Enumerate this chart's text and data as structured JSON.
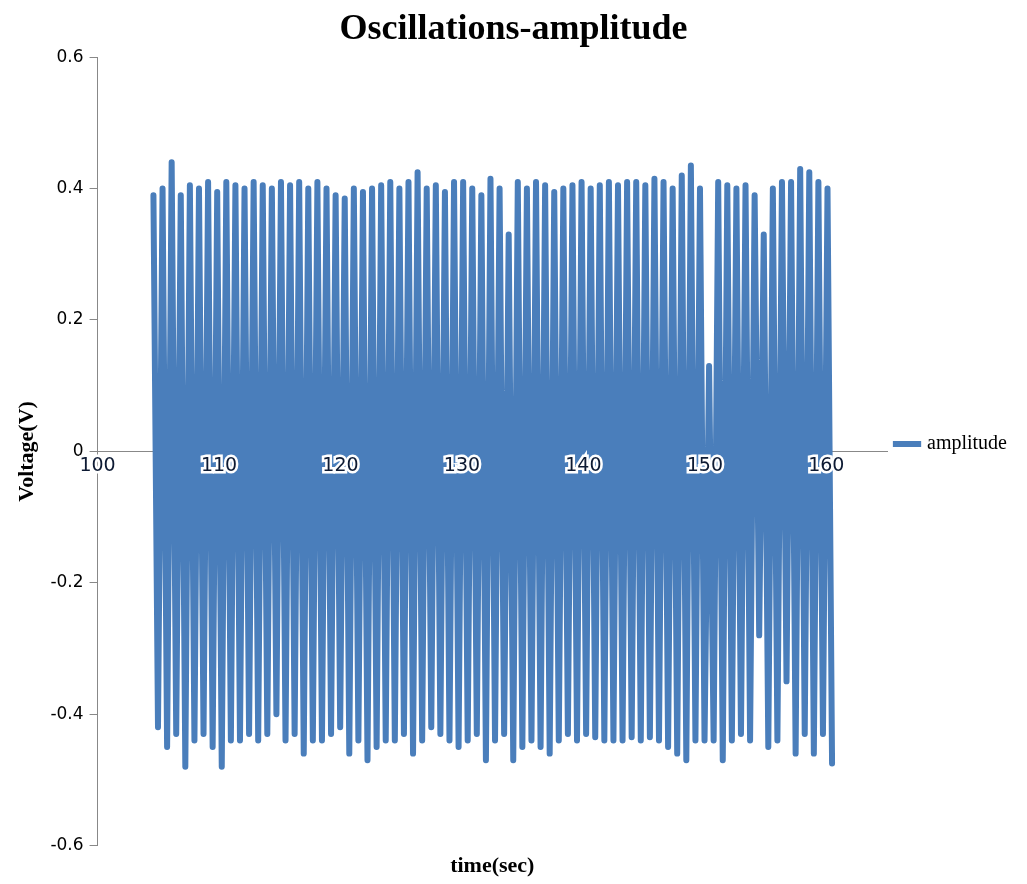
{
  "chart_data": {
    "type": "line",
    "title": "Oscillations-amplitude",
    "xlabel": "time(sec)",
    "ylabel": "Voltage(V)",
    "xlim": [
      100,
      165
    ],
    "xticks": [
      100,
      110,
      120,
      130,
      140,
      150,
      160
    ],
    "ylim": [
      -0.6,
      0.6
    ],
    "yticks": [
      -0.6,
      -0.4,
      -0.2,
      0,
      0.2,
      0.4,
      0.6
    ],
    "grid": false,
    "legend": "right",
    "marker": "none",
    "line_style": "solid",
    "series": [
      {
        "name": "amplitude",
        "color": "#4a7ebb",
        "x": [
          104.6,
          104.975,
          105.35,
          105.725,
          106.1,
          106.475,
          106.85,
          107.225,
          107.6,
          107.975,
          108.35,
          108.725,
          109.1,
          109.475,
          109.85,
          110.225,
          110.6,
          110.975,
          111.35,
          111.725,
          112.1,
          112.475,
          112.85,
          113.225,
          113.6,
          113.975,
          114.35,
          114.725,
          115.1,
          115.475,
          115.85,
          116.225,
          116.6,
          116.975,
          117.35,
          117.725,
          118.1,
          118.475,
          118.85,
          119.225,
          119.6,
          119.975,
          120.35,
          120.725,
          121.1,
          121.475,
          121.85,
          122.225,
          122.6,
          122.975,
          123.35,
          123.725,
          124.1,
          124.475,
          124.85,
          125.225,
          125.6,
          125.975,
          126.35,
          126.725,
          127.1,
          127.475,
          127.85,
          128.225,
          128.6,
          128.975,
          129.35,
          129.725,
          130.1,
          130.475,
          130.85,
          131.225,
          131.6,
          131.975,
          132.35,
          132.725,
          133.1,
          133.475,
          133.85,
          134.225,
          134.6,
          134.975,
          135.35,
          135.725,
          136.1,
          136.475,
          136.85,
          137.225,
          137.6,
          137.975,
          138.35,
          138.725,
          139.1,
          139.475,
          139.85,
          140.225,
          140.6,
          140.975,
          141.35,
          141.725,
          142.1,
          142.475,
          142.85,
          143.225,
          143.6,
          143.975,
          144.35,
          144.725,
          145.1,
          145.475,
          145.85,
          146.225,
          146.6,
          146.975,
          147.35,
          147.725,
          148.1,
          148.475,
          148.85,
          149.225,
          149.6,
          149.975,
          150.35,
          150.725,
          151.1,
          151.475,
          151.85,
          152.225,
          152.6,
          152.975,
          153.35,
          153.725,
          154.1,
          154.475,
          154.85,
          155.225,
          155.6,
          155.975,
          156.35,
          156.725,
          157.1,
          157.475,
          157.85,
          158.225,
          158.6,
          158.975,
          159.35,
          159.725,
          160.1,
          160.475
        ],
        "values": [
          0.39,
          -0.42,
          0.4,
          -0.45,
          0.44,
          -0.43,
          0.39,
          -0.48,
          0.405,
          -0.44,
          0.4,
          -0.43,
          0.41,
          -0.45,
          0.395,
          -0.48,
          0.41,
          -0.44,
          0.405,
          -0.44,
          0.4,
          -0.43,
          0.41,
          -0.44,
          0.405,
          -0.43,
          0.4,
          -0.4,
          0.41,
          -0.44,
          0.405,
          -0.43,
          0.41,
          -0.46,
          0.4,
          -0.44,
          0.41,
          -0.44,
          0.4,
          -0.43,
          0.39,
          -0.42,
          0.385,
          -0.46,
          0.4,
          -0.44,
          0.395,
          -0.47,
          0.4,
          -0.45,
          0.405,
          -0.44,
          0.41,
          -0.44,
          0.4,
          -0.43,
          0.41,
          -0.46,
          0.425,
          -0.44,
          0.4,
          -0.42,
          0.405,
          -0.43,
          0.395,
          -0.44,
          0.41,
          -0.45,
          0.41,
          -0.44,
          0.4,
          -0.43,
          0.39,
          -0.47,
          0.415,
          -0.44,
          0.4,
          -0.43,
          0.33,
          -0.47,
          0.41,
          -0.45,
          0.4,
          -0.44,
          0.41,
          -0.45,
          0.405,
          -0.46,
          0.395,
          -0.44,
          0.4,
          -0.43,
          0.405,
          -0.44,
          0.41,
          -0.43,
          0.4,
          -0.435,
          0.405,
          -0.44,
          0.41,
          -0.44,
          0.405,
          -0.44,
          0.41,
          -0.435,
          0.41,
          -0.44,
          0.405,
          -0.435,
          0.415,
          -0.44,
          0.41,
          -0.45,
          0.4,
          -0.46,
          0.42,
          -0.47,
          0.435,
          -0.44,
          0.4,
          -0.44,
          0.13,
          -0.44,
          0.41,
          -0.47,
          0.405,
          -0.44,
          0.4,
          -0.43,
          0.405,
          -0.44,
          0.39,
          -0.28,
          0.33,
          -0.45,
          0.4,
          -0.44,
          0.41,
          -0.35,
          0.41,
          -0.46,
          0.43,
          -0.43,
          0.425,
          -0.46,
          0.41,
          -0.43,
          0.4,
          -0.475
        ]
      }
    ]
  }
}
